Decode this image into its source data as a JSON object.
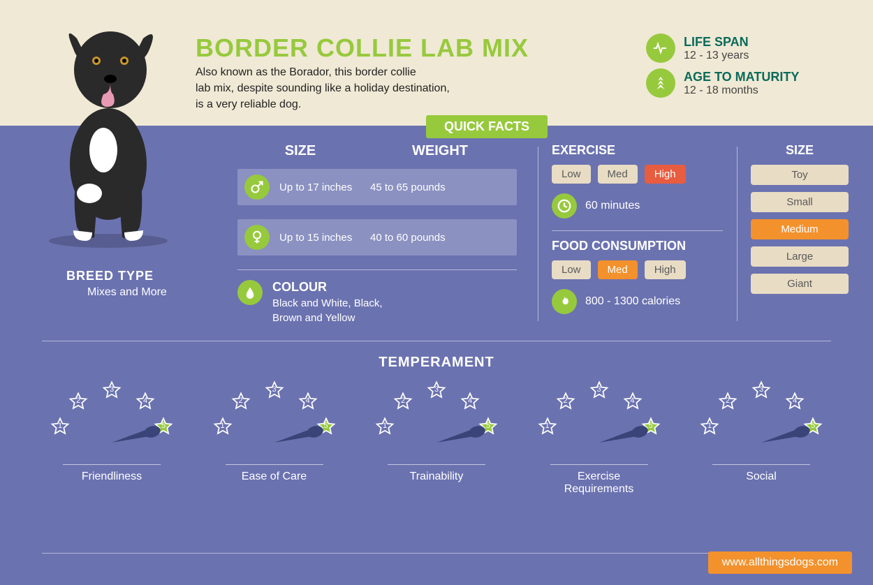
{
  "title": "BORDER COLLIE LAB MIX",
  "description": "Also known as the Borador, this border collie\nlab mix, despite sounding like a holiday destination,\nis a very reliable dog.",
  "quick_facts_label": "QUICK FACTS",
  "life": {
    "span_label": "LIFE SPAN",
    "span_value": "12 - 13 years",
    "maturity_label": "AGE TO MATURITY",
    "maturity_value": "12 - 18 months"
  },
  "breed": {
    "label": "BREED TYPE",
    "value": "Mixes and More"
  },
  "size_weight": {
    "size_h": "SIZE",
    "weight_h": "WEIGHT",
    "male": {
      "size": "Up to 17 inches",
      "weight": "45 to 65 pounds"
    },
    "female": {
      "size": "Up to 15 inches",
      "weight": "40 to 60 pounds"
    }
  },
  "colour": {
    "label": "COLOUR",
    "value": "Black and White, Black,\nBrown and Yellow"
  },
  "exercise": {
    "label": "EXERCISE",
    "levels": [
      "Low",
      "Med",
      "High"
    ],
    "selected": 2,
    "selected_color": "#e85c3f",
    "value": "60 minutes"
  },
  "food": {
    "label": "FOOD CONSUMPTION",
    "levels": [
      "Low",
      "Med",
      "High"
    ],
    "selected": 1,
    "selected_color": "#f3912c",
    "value": "800 - 1300 calories"
  },
  "size_cat": {
    "label": "SIZE",
    "options": [
      "Toy",
      "Small",
      "Medium",
      "Large",
      "Giant"
    ],
    "selected": 2
  },
  "temperament": {
    "label": "TEMPERAMENT",
    "items": [
      {
        "label": "Friendliness",
        "rating": 5
      },
      {
        "label": "Ease of Care",
        "rating": 5
      },
      {
        "label": "Trainability",
        "rating": 5
      },
      {
        "label": "Exercise\nRequirements",
        "rating": 5
      },
      {
        "label": "Social",
        "rating": 5
      }
    ],
    "star_fill": "#97c93d",
    "star_empty": "#ffffff"
  },
  "url": "www.allthingsdogs.com",
  "colors": {
    "accent_green": "#97c93d",
    "accent_orange": "#f3912c",
    "bg_top": "#f0e9d5",
    "bg_main": "#6b72b0",
    "teal": "#0a6b5b",
    "pill_bg": "#e8dcc4"
  }
}
